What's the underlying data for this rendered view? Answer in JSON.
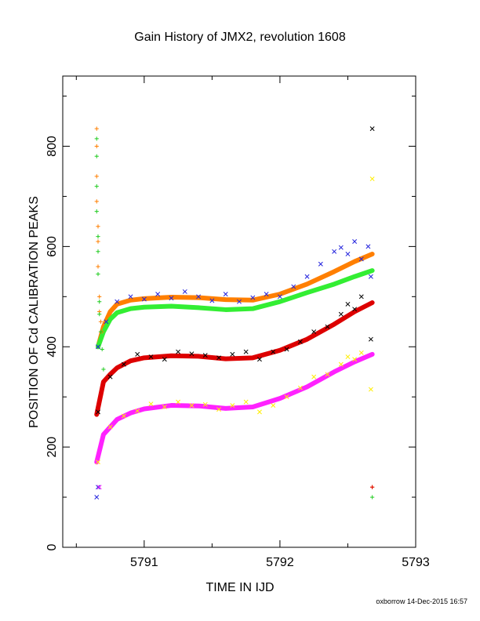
{
  "chart_data": {
    "type": "scatter",
    "title": "Gain History of JMX2, revolution 1608",
    "xlabel": "TIME IN IJD",
    "ylabel": "POSITION OF Cd CALIBRATION PEAKS",
    "xlim": [
      5790.4,
      5793.0
    ],
    "ylim": [
      0,
      940
    ],
    "xticks": [
      5791,
      5792,
      5793
    ],
    "xtick_labels": [
      "5791",
      "5792",
      "5793"
    ],
    "yticks": [
      0,
      200,
      400,
      600,
      800
    ],
    "ytick_labels": [
      "0",
      "200",
      "400",
      "600",
      "800"
    ],
    "grid": false,
    "legend": "none",
    "series": [
      {
        "color": "#ff7f00",
        "marker": "line",
        "x": [
          5790.66,
          5790.7,
          5790.75,
          5790.8,
          5790.9,
          5791.0,
          5791.2,
          5791.4,
          5791.6,
          5791.8,
          5792.0,
          5792.2,
          5792.4,
          5792.55,
          5792.68
        ],
        "y": [
          400,
          440,
          470,
          485,
          493,
          496,
          499,
          498,
          494,
          493,
          505,
          525,
          550,
          570,
          585
        ]
      },
      {
        "color": "#33ee33",
        "marker": "line",
        "x": [
          5790.66,
          5790.7,
          5790.75,
          5790.8,
          5790.9,
          5791.0,
          5791.2,
          5791.4,
          5791.6,
          5791.8,
          5792.0,
          5792.2,
          5792.4,
          5792.55,
          5792.68
        ],
        "y": [
          400,
          430,
          455,
          468,
          476,
          479,
          481,
          478,
          474,
          476,
          490,
          508,
          525,
          540,
          552
        ]
      },
      {
        "color": "#dd0000",
        "marker": "line",
        "x": [
          5790.65,
          5790.7,
          5790.75,
          5790.8,
          5790.9,
          5791.0,
          5791.2,
          5791.4,
          5791.6,
          5791.8,
          5792.0,
          5792.2,
          5792.4,
          5792.55,
          5792.68
        ],
        "y": [
          265,
          330,
          345,
          358,
          372,
          378,
          382,
          381,
          376,
          378,
          393,
          415,
          445,
          470,
          488
        ]
      },
      {
        "color": "#ff22ff",
        "marker": "line",
        "x": [
          5790.65,
          5790.7,
          5790.75,
          5790.8,
          5790.9,
          5791.0,
          5791.2,
          5791.4,
          5791.6,
          5791.8,
          5792.0,
          5792.2,
          5792.4,
          5792.55,
          5792.68
        ],
        "y": [
          170,
          225,
          240,
          255,
          268,
          276,
          283,
          282,
          277,
          280,
          297,
          320,
          350,
          370,
          385
        ]
      },
      {
        "color": "#2222dd",
        "marker": "x",
        "x": [
          5790.66,
          5790.72,
          5790.8,
          5790.9,
          5791.0,
          5791.1,
          5791.2,
          5791.3,
          5791.4,
          5791.5,
          5791.6,
          5791.7,
          5791.8,
          5791.9,
          5792.0,
          5792.1,
          5792.2,
          5792.3,
          5792.4,
          5792.45,
          5792.5,
          5792.55,
          5792.6,
          5792.65,
          5792.67
        ],
        "y": [
          400,
          450,
          490,
          500,
          495,
          505,
          497,
          510,
          500,
          492,
          505,
          490,
          498,
          505,
          500,
          520,
          540,
          565,
          590,
          598,
          585,
          610,
          575,
          600,
          540
        ]
      },
      {
        "color": "#000000",
        "marker": "x",
        "x": [
          5790.66,
          5790.75,
          5790.85,
          5790.95,
          5791.05,
          5791.15,
          5791.25,
          5791.35,
          5791.45,
          5791.55,
          5791.65,
          5791.75,
          5791.85,
          5791.95,
          5792.05,
          5792.15,
          5792.25,
          5792.35,
          5792.45,
          5792.5,
          5792.55,
          5792.6,
          5792.67,
          5792.68
        ],
        "y": [
          270,
          340,
          365,
          385,
          380,
          375,
          390,
          386,
          383,
          378,
          385,
          390,
          375,
          390,
          395,
          410,
          430,
          440,
          465,
          485,
          475,
          500,
          415,
          835
        ]
      },
      {
        "color": "#ffee00",
        "marker": "x",
        "x": [
          5790.66,
          5790.75,
          5790.85,
          5790.95,
          5791.05,
          5791.15,
          5791.25,
          5791.35,
          5791.45,
          5791.55,
          5791.65,
          5791.75,
          5791.85,
          5791.95,
          5792.05,
          5792.15,
          5792.25,
          5792.35,
          5792.45,
          5792.5,
          5792.55,
          5792.6,
          5792.67,
          5792.68
        ],
        "y": [
          170,
          240,
          262,
          272,
          286,
          280,
          290,
          283,
          285,
          275,
          283,
          290,
          270,
          283,
          300,
          318,
          340,
          345,
          365,
          380,
          375,
          388,
          315,
          735
        ]
      },
      {
        "color": "#ff7f00",
        "marker": "+",
        "x": [
          5790.65,
          5790.65,
          5790.65,
          5790.65,
          5790.66,
          5790.66,
          5790.66,
          5790.67,
          5790.67,
          5790.68,
          5790.69,
          5792.68
        ],
        "y": [
          835,
          800,
          740,
          690,
          640,
          610,
          560,
          500,
          470,
          450,
          430,
          120
        ]
      },
      {
        "color": "#22cc22",
        "marker": "+",
        "x": [
          5790.65,
          5790.65,
          5790.65,
          5790.65,
          5790.66,
          5790.66,
          5790.66,
          5790.67,
          5790.67,
          5790.68,
          5790.69,
          5790.7,
          5792.68
        ],
        "y": [
          815,
          780,
          720,
          670,
          620,
          590,
          545,
          490,
          465,
          430,
          395,
          355,
          100
        ]
      }
    ],
    "outliers_low": [
      {
        "color": "#2222dd",
        "marker": "x",
        "x": 5790.65,
        "y": 100
      },
      {
        "color": "#2222dd",
        "marker": "x",
        "x": 5790.66,
        "y": 120
      },
      {
        "color": "#ff22ff",
        "marker": "x",
        "x": 5790.67,
        "y": 120
      },
      {
        "color": "#dd0000",
        "marker": "+",
        "x": 5792.68,
        "y": 120
      }
    ]
  },
  "footer_note": "oxborrow 14-Dec-2015 16:57"
}
